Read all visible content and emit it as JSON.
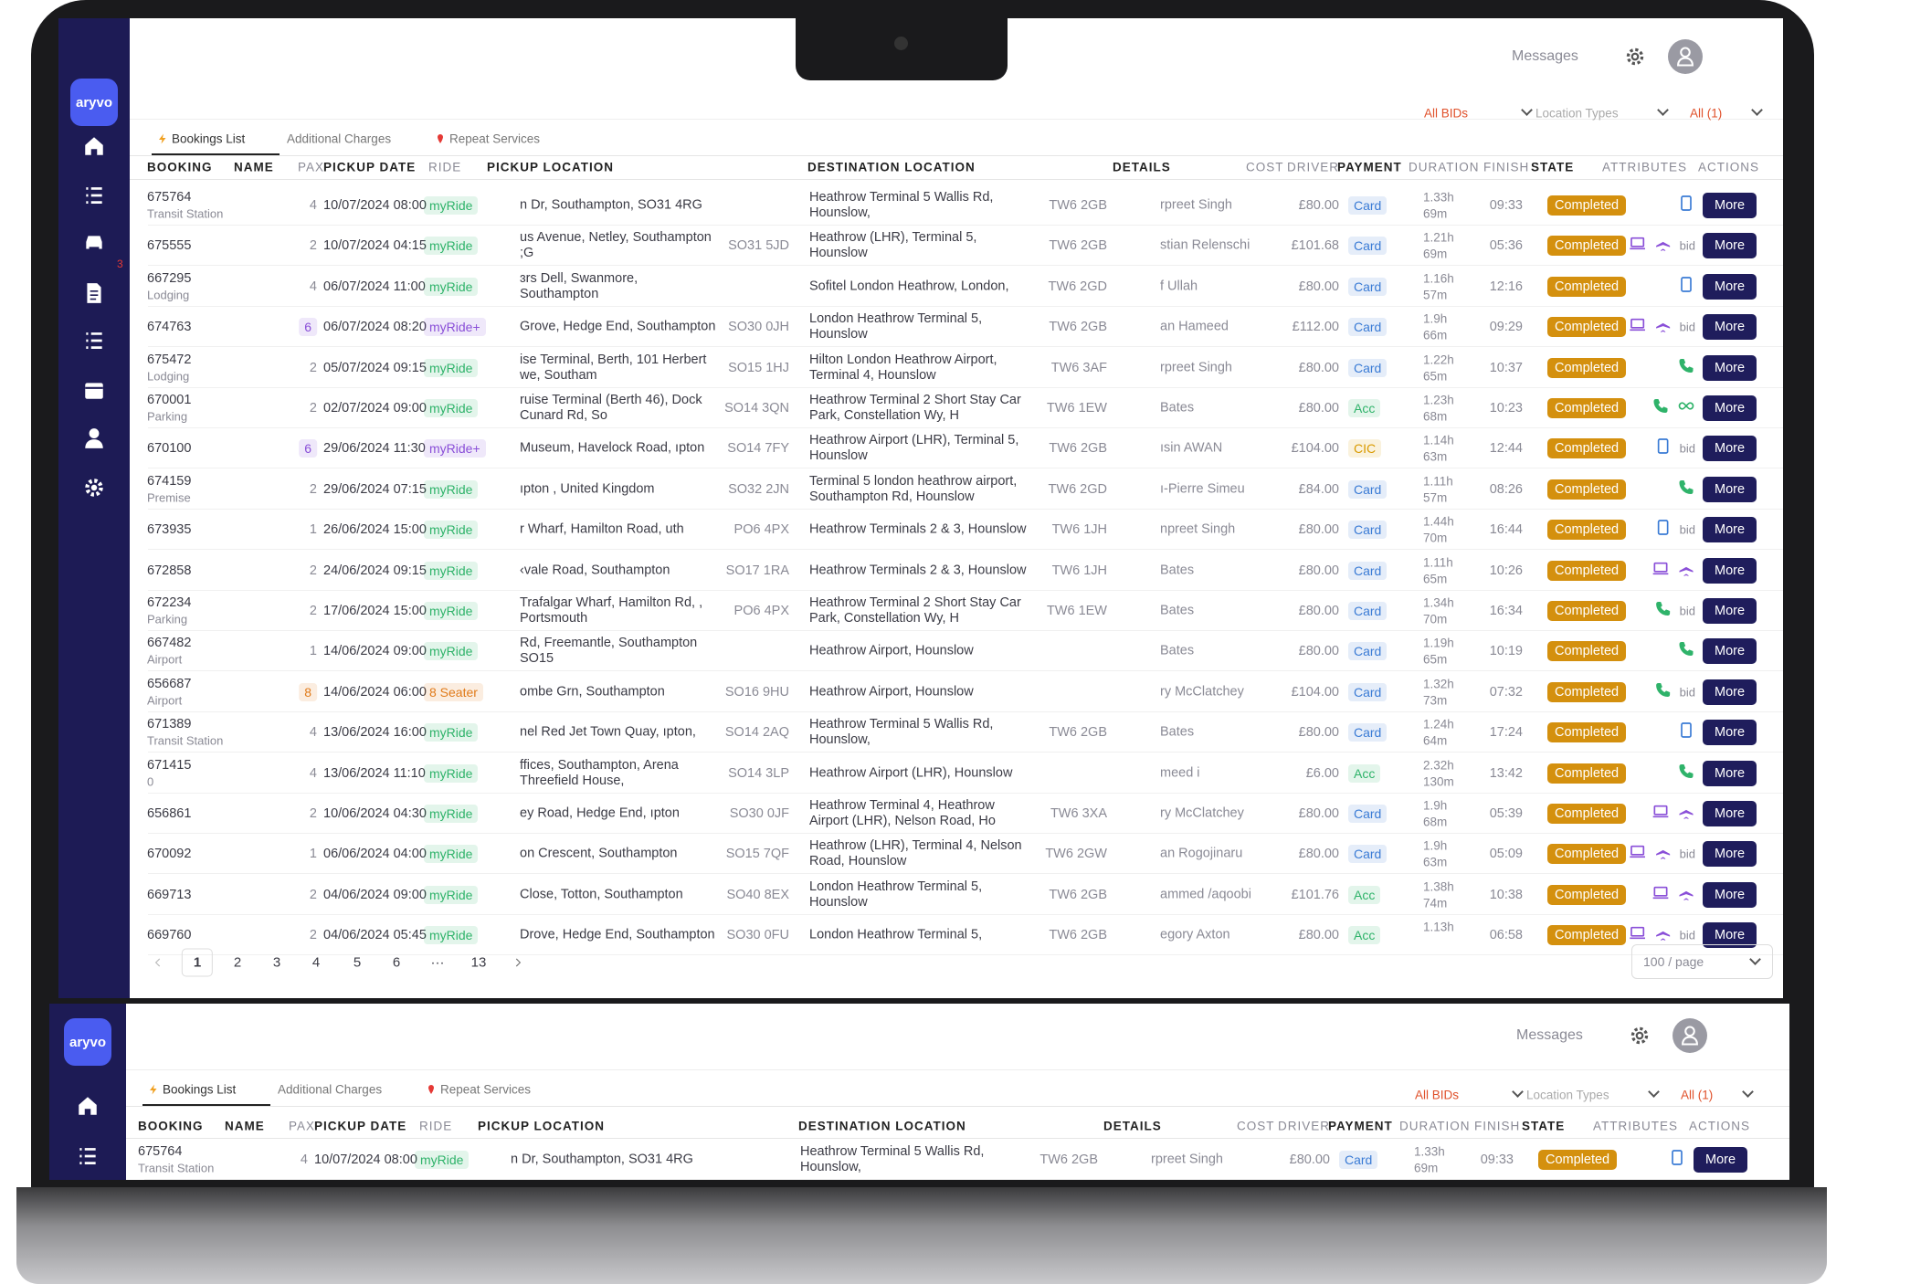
{
  "header": {
    "brand": "aryvo",
    "messages": "Messages",
    "sidebar_badge": "3"
  },
  "tabs": [
    "Bookings List",
    "Additional Charges",
    "Repeat Services"
  ],
  "filters": [
    "All BIDs",
    "Location Types",
    "All (1)"
  ],
  "table": {
    "columns": [
      {
        "label": "BOOKING",
        "bold": true
      },
      {
        "label": "NAME",
        "bold": true
      },
      {
        "label": "PAX"
      },
      {
        "label": "PICKUP DATE",
        "bold": true
      },
      {
        "label": "RIDE"
      },
      {
        "label": "PICKUP LOCATION",
        "bold": true
      },
      {
        "label": "DESTINATION LOCATION",
        "bold": true
      },
      {
        "label": "DETAILS",
        "bold": true
      },
      {
        "label": "COST"
      },
      {
        "label": "DRIVER"
      },
      {
        "label": "PAYMENT",
        "bold": true
      },
      {
        "label": "DURATION"
      },
      {
        "label": "FINISH"
      },
      {
        "label": "STATE",
        "bold": true
      },
      {
        "label": "ATTRIBUTES"
      },
      {
        "label": "ACTIONS"
      }
    ],
    "rows": [
      {
        "id": "675764",
        "sub": "Transit Station",
        "pax": "4",
        "date": "10/07/2024 08:00",
        "ride": "myRide",
        "ride_color": "#2fb36a",
        "pickup": "n Dr, Southampton, SO31 4RG",
        "dest": "Heathrow Terminal 5 Wallis Rd, Hounslow,",
        "dest_pc": "TW6 2GB",
        "driver": "rpreet Singh",
        "cost": "£80.00",
        "pay": "Card",
        "pay_color": "#3a7bd5",
        "dur_h": "1.33h",
        "dur_m": "69m",
        "finish": "09:33",
        "state": "Completed",
        "icons": [
          "tablet"
        ],
        "action": "More"
      },
      {
        "id": "675555",
        "pax": "2",
        "date": "10/07/2024 04:15",
        "ride": "myRide",
        "ride_color": "#2fb36a",
        "pickup": "us Avenue, Netley, Southampton ;G",
        "pickup_pc": "SO31 5JD",
        "dest": "Heathrow (LHR), Terminal 5, Hounslow",
        "dest_pc": "TW6 2GB",
        "driver": "stian Relenschi",
        "cost": "£101.68",
        "pay": "Card",
        "pay_color": "#3a7bd5",
        "dur_h": "1.21h",
        "dur_m": "69m",
        "finish": "05:36",
        "state": "Completed",
        "icons": [
          "tablet",
          "plane"
        ],
        "bid": "bid",
        "action": "More"
      },
      {
        "id": "667295",
        "sub": "Lodging",
        "pax": "4",
        "date": "06/07/2024 11:00",
        "ride": "myRide",
        "ride_color": "#2fb36a",
        "pickup": "ɜrs Dell, Swanmore, Southampton",
        "dest": "Sofitel London Heathrow, London,",
        "dest_pc": "TW6 2GD",
        "driver": "f Ullah",
        "cost": "£80.00",
        "pay": "Card",
        "pay_color": "#3a7bd5",
        "dur_h": "1.16h",
        "dur_m": "57m",
        "finish": "12:16",
        "state": "Completed",
        "icons": [
          "tablet"
        ],
        "action": "More"
      },
      {
        "id": "674763",
        "pax": "6",
        "pax_badge": true,
        "date": "06/07/2024 08:20",
        "ride": "myRide+",
        "ride_color": "#8a4fd8",
        "pickup": "Grove, Hedge End, Southampton",
        "pickup_pc": "SO30 0JH",
        "dest": "London Heathrow Terminal 5, Hounslow",
        "dest_pc": "TW6 2GB",
        "driver": "an Hameed",
        "cost": "£112.00",
        "pay": "Card",
        "pay_color": "#3a7bd5",
        "dur_h": "1.9h",
        "dur_m": "66m",
        "finish": "09:29",
        "state": "Completed",
        "icons": [
          "tablet",
          "plane"
        ],
        "bid": "bid",
        "action": "More"
      },
      {
        "id": "675472",
        "sub": "Lodging",
        "pax": "2",
        "date": "05/07/2024 09:15",
        "ride": "myRide",
        "ride_color": "#2fb36a",
        "pickup": "ise Terminal, Berth, 101 Herbert we, Southam",
        "pickup_pc": "SO15 1HJ",
        "dest": "Hilton London Heathrow Airport, Terminal 4, Hounslow",
        "dest_pc": "TW6 3AF",
        "driver": "rpreet Singh",
        "cost": "£80.00",
        "pay": "Card",
        "pay_color": "#3a7bd5",
        "dur_h": "1.22h",
        "dur_m": "65m",
        "finish": "10:37",
        "state": "Completed",
        "icons": [
          "phone"
        ],
        "action": "More"
      },
      {
        "id": "670001",
        "sub": "Parking",
        "pax": "2",
        "date": "02/07/2024 09:00",
        "ride": "myRide",
        "ride_color": "#2fb36a",
        "pickup": "ruise Terminal (Berth 46), Dock Cunard Rd, So",
        "pickup_pc": "SO14 3QN",
        "dest": "Heathrow Terminal 2 Short Stay Car Park, Constellation Wy, H",
        "dest_pc": "TW6 1EW",
        "driver": "Bates",
        "cost": "£80.00",
        "pay": "Acc",
        "pay_color": "#2fb36a",
        "dur_h": "1.23h",
        "dur_m": "68m",
        "finish": "10:23",
        "state": "Completed",
        "icons": [
          "phone",
          "link"
        ],
        "action": "More"
      },
      {
        "id": "670100",
        "pax": "6",
        "pax_badge": true,
        "date": "29/06/2024 11:30",
        "ride": "myRide+",
        "ride_color": "#8a4fd8",
        "pickup": "Museum, Havelock Road, ıpton",
        "pickup_pc": "SO14 7FY",
        "dest": "Heathrow Airport (LHR), Terminal 5, Hounslow",
        "dest_pc": "TW6 2GB",
        "driver": "ısin AWAN",
        "cost": "£104.00",
        "pay": "CIC",
        "pay_color": "#d99a00",
        "dur_h": "1.14h",
        "dur_m": "63m",
        "finish": "12:44",
        "state": "Completed",
        "icons": [
          "tablet"
        ],
        "bid": "bid",
        "action": "More"
      },
      {
        "id": "674159",
        "sub": "Premise",
        "pax": "2",
        "date": "29/06/2024 07:15",
        "ride": "myRide",
        "ride_color": "#2fb36a",
        "pickup": "ıpton , United Kingdom",
        "pickup_pc": "SO32 2JN",
        "dest": "Terminal 5 london heathrow airport, Southampton Rd, Hounslow",
        "dest_pc": "TW6 2GD",
        "driver": "ı-Pierre Simeu",
        "cost": "£84.00",
        "pay": "Card",
        "pay_color": "#3a7bd5",
        "dur_h": "1.11h",
        "dur_m": "57m",
        "finish": "08:26",
        "state": "Completed",
        "icons": [
          "phone"
        ],
        "action": "More"
      },
      {
        "id": "673935",
        "pax": "1",
        "date": "26/06/2024 15:00",
        "ride": "myRide",
        "ride_color": "#2fb36a",
        "pickup": "r Wharf, Hamilton Road, uth",
        "pickup_pc": "PO6 4PX",
        "dest": "Heathrow Terminals 2 & 3, Hounslow",
        "dest_pc": "TW6 1JH",
        "driver": "npreet Singh",
        "cost": "£80.00",
        "pay": "Card",
        "pay_color": "#3a7bd5",
        "dur_h": "1.44h",
        "dur_m": "70m",
        "finish": "16:44",
        "state": "Completed",
        "icons": [
          "tablet"
        ],
        "bid": "bid",
        "action": "More"
      },
      {
        "id": "672858",
        "pax": "2",
        "date": "24/06/2024 09:15",
        "ride": "myRide",
        "ride_color": "#2fb36a",
        "pickup": "‹vale Road, Southampton",
        "pickup_pc": "SO17 1RA",
        "dest": "Heathrow Terminals 2 & 3, Hounslow",
        "dest_pc": "TW6 1JH",
        "driver": "Bates",
        "cost": "£80.00",
        "pay": "Card",
        "pay_color": "#3a7bd5",
        "dur_h": "1.11h",
        "dur_m": "65m",
        "finish": "10:26",
        "state": "Completed",
        "icons": [
          "tablet",
          "plane"
        ],
        "action": "More"
      },
      {
        "id": "672234",
        "sub": "Parking",
        "pax": "2",
        "date": "17/06/2024 15:00",
        "ride": "myRide",
        "ride_color": "#2fb36a",
        "pickup": "Trafalgar Wharf, Hamilton Rd, , Portsmouth",
        "pickup_pc": "PO6 4PX",
        "dest": "Heathrow Terminal 2 Short Stay Car Park, Constellation Wy, H",
        "dest_pc": "TW6 1EW",
        "driver": "Bates",
        "cost": "£80.00",
        "pay": "Card",
        "pay_color": "#3a7bd5",
        "dur_h": "1.34h",
        "dur_m": "70m",
        "finish": "16:34",
        "state": "Completed",
        "icons": [
          "phone"
        ],
        "bid": "bid",
        "action": "More"
      },
      {
        "id": "667482",
        "sub": "Airport",
        "pax": "1",
        "date": "14/06/2024 09:00",
        "ride": "myRide",
        "ride_color": "#2fb36a",
        "pickup": "Rd, Freemantle, Southampton SO15",
        "dest": "Heathrow Airport, Hounslow",
        "driver": "Bates",
        "cost": "£80.00",
        "pay": "Card",
        "pay_color": "#3a7bd5",
        "dur_h": "1.19h",
        "dur_m": "65m",
        "finish": "10:19",
        "state": "Completed",
        "icons": [
          "phone"
        ],
        "action": "More"
      },
      {
        "id": "656687",
        "sub": "Airport",
        "pax": "8",
        "pax_badge": true,
        "date": "14/06/2024 06:00",
        "ride": "8 Seater",
        "ride_color": "#e07b1a",
        "pickup": "ombe Grn, Southampton",
        "pickup_pc": "SO16 9HU",
        "dest": "Heathrow Airport, Hounslow",
        "driver": "ry McClatchey",
        "cost": "£104.00",
        "pay": "Card",
        "pay_color": "#3a7bd5",
        "dur_h": "1.32h",
        "dur_m": "73m",
        "finish": "07:32",
        "state": "Completed",
        "icons": [
          "phone"
        ],
        "bid": "bid",
        "action": "More"
      },
      {
        "id": "671389",
        "sub": "Transit Station",
        "pax": "4",
        "date": "13/06/2024 16:00",
        "ride": "myRide",
        "ride_color": "#2fb36a",
        "pickup": "nel Red Jet Town Quay, ıpton,",
        "pickup_pc": "SO14 2AQ",
        "dest": "Heathrow Terminal 5 Wallis Rd, Hounslow,",
        "dest_pc": "TW6 2GB",
        "driver": "Bates",
        "cost": "£80.00",
        "pay": "Card",
        "pay_color": "#3a7bd5",
        "dur_h": "1.24h",
        "dur_m": "64m",
        "finish": "17:24",
        "state": "Completed",
        "icons": [
          "tablet"
        ],
        "action": "More"
      },
      {
        "id": "671415",
        "sub": "0",
        "pax": "4",
        "date": "13/06/2024 11:10",
        "ride": "myRide",
        "ride_color": "#2fb36a",
        "pickup": "ffices, Southampton, Arena Threefield House,",
        "pickup_pc": "SO14 3LP",
        "dest": "Heathrow Airport (LHR), Hounslow",
        "driver": "meed i",
        "cost": "£6.00",
        "pay": "Acc",
        "pay_color": "#2fb36a",
        "dur_h": "2.32h",
        "dur_m": "130m",
        "finish": "13:42",
        "state": "Completed",
        "icons": [
          "phone"
        ],
        "action": "More"
      },
      {
        "id": "656861",
        "pax": "2",
        "date": "10/06/2024 04:30",
        "ride": "myRide",
        "ride_color": "#2fb36a",
        "pickup": "ey Road, Hedge End, ıpton",
        "pickup_pc": "SO30 0JF",
        "dest": "Heathrow Terminal 4, Heathrow Airport (LHR), Nelson Road, Ho",
        "dest_pc": "TW6 3XA",
        "driver": "ry McClatchey",
        "cost": "£80.00",
        "pay": "Card",
        "pay_color": "#3a7bd5",
        "dur_h": "1.9h",
        "dur_m": "68m",
        "finish": "05:39",
        "state": "Completed",
        "icons": [
          "tablet",
          "plane"
        ],
        "action": "More"
      },
      {
        "id": "670092",
        "pax": "1",
        "date": "06/06/2024 04:00",
        "ride": "myRide",
        "ride_color": "#2fb36a",
        "pickup": "on Crescent, Southampton",
        "pickup_pc": "SO15 7QF",
        "dest": "Heathrow (LHR), Terminal 4, Nelson Road, Hounslow",
        "dest_pc": "TW6 2GW",
        "driver": "an Rogojinaru",
        "cost": "£80.00",
        "pay": "Card",
        "pay_color": "#3a7bd5",
        "dur_h": "1.9h",
        "dur_m": "63m",
        "finish": "05:09",
        "state": "Completed",
        "icons": [
          "tablet",
          "plane"
        ],
        "bid": "bid",
        "action": "More"
      },
      {
        "id": "669713",
        "pax": "2",
        "date": "04/06/2024 09:00",
        "ride": "myRide",
        "ride_color": "#2fb36a",
        "pickup": "Close, Totton, Southampton",
        "pickup_pc": "SO40 8EX",
        "dest": "London Heathrow Terminal 5, Hounslow",
        "dest_pc": "TW6 2GB",
        "driver": "ammed /aqoobi",
        "cost": "£101.76",
        "pay": "Acc",
        "pay_color": "#2fb36a",
        "dur_h": "1.38h",
        "dur_m": "74m",
        "finish": "10:38",
        "state": "Completed",
        "icons": [
          "tablet",
          "plane"
        ],
        "action": "More"
      },
      {
        "id": "669760",
        "pax": "2",
        "date": "04/06/2024 05:45",
        "ride": "myRide",
        "ride_color": "#2fb36a",
        "pickup": "Drove, Hedge End, Southampton",
        "pickup_pc": "SO30 0FU",
        "dest": "London Heathrow Terminal 5,",
        "dest_pc": "TW6 2GB",
        "driver": "egory Axton",
        "cost": "£80.00",
        "pay": "Acc",
        "pay_color": "#2fb36a",
        "dur_h": "1.13h",
        "finish": "06:58",
        "state": "Completed",
        "icons": [
          "tablet",
          "plane"
        ],
        "bid": "bid",
        "action": "More"
      }
    ]
  },
  "pagination": {
    "pages": [
      "1",
      "2",
      "3",
      "4",
      "5",
      "6",
      "···",
      "13"
    ],
    "page_size": "100 / page"
  }
}
